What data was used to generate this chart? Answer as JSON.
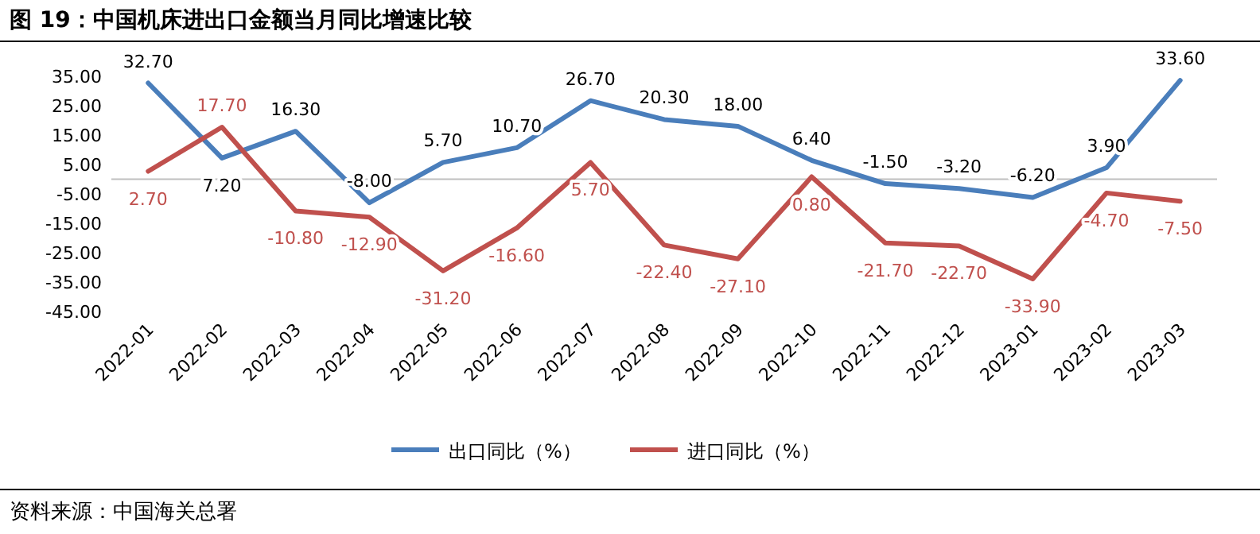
{
  "chart_data": {
    "type": "line",
    "title": "图 19：中国机床进出口金额当月同比增速比较",
    "categories": [
      "2022-01",
      "2022-02",
      "2022-03",
      "2022-04",
      "2022-05",
      "2022-06",
      "2022-07",
      "2022-08",
      "2022-09",
      "2022-10",
      "2022-11",
      "2022-12",
      "2023-01",
      "2023-02",
      "2023-03"
    ],
    "series": [
      {
        "name": "出口同比（%）",
        "color": "#4a7ebb",
        "values": [
          32.7,
          7.2,
          16.3,
          -8.0,
          5.7,
          10.7,
          26.7,
          20.3,
          18.0,
          6.4,
          -1.5,
          -3.2,
          -6.2,
          3.9,
          33.6
        ],
        "value_labels": [
          "32.70",
          "7.20",
          "16.30",
          "-8.00",
          "5.70",
          "10.70",
          "26.70",
          "20.30",
          "18.00",
          "6.40",
          "-1.50",
          "-3.20",
          "-6.20",
          "3.90",
          "33.60"
        ]
      },
      {
        "name": "进口同比（%）",
        "color": "#c0504d",
        "values": [
          2.7,
          17.7,
          -10.8,
          -12.9,
          -31.2,
          -16.6,
          5.7,
          -22.4,
          -27.1,
          0.8,
          -21.7,
          -22.7,
          -33.9,
          -4.7,
          -7.5
        ],
        "value_labels": [
          "2.70",
          "17.70",
          "-10.80",
          "-12.90",
          "-31.20",
          "-16.60",
          "5.70",
          "-22.40",
          "-27.10",
          "0.80",
          "-21.70",
          "-22.70",
          "-33.90",
          "-4.70",
          "-7.50"
        ]
      }
    ],
    "ylim": [
      -45,
      35
    ],
    "yticks": [
      {
        "value": 35,
        "label": "35.00"
      },
      {
        "value": 25,
        "label": "25.00"
      },
      {
        "value": 15,
        "label": "15.00"
      },
      {
        "value": 5,
        "label": "5.00"
      },
      {
        "value": -5,
        "label": "-5.00"
      },
      {
        "value": -15,
        "label": "-15.00"
      },
      {
        "value": -25,
        "label": "-25.00"
      },
      {
        "value": -35,
        "label": "-35.00"
      },
      {
        "value": -45,
        "label": "-45.00"
      }
    ],
    "legend": "bottom",
    "marker": "none",
    "line_style": "solid",
    "grid": false,
    "annotations": [
      "资料来源：中国海关总署"
    ]
  }
}
